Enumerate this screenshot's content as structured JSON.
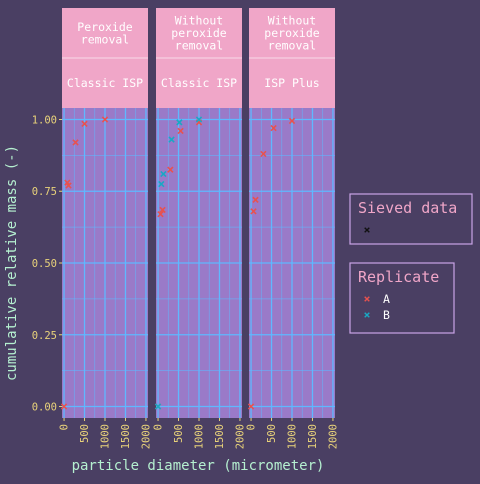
{
  "chart_data": {
    "type": "scatter",
    "xlabel": "particle diameter (micrometer)",
    "ylabel": "cumulative relative mass (-)",
    "xlim": [
      -50,
      2050
    ],
    "ylim": [
      -0.04,
      1.04
    ],
    "x_ticks": [
      0,
      500,
      1000,
      1500,
      2000
    ],
    "y_ticks": [
      0.0,
      0.25,
      0.5,
      0.75,
      1.0
    ],
    "y_tick_labels": [
      "0.00",
      "0.25",
      "0.50",
      "0.75",
      "1.00"
    ],
    "grid": true,
    "panels": [
      {
        "strip_top": "Peroxide removal",
        "strip_bottom": "Classic ISP",
        "series": [
          {
            "name": "A",
            "points": [
              [
                0,
                0.0
              ],
              [
                80,
                0.78
              ],
              [
                110,
                0.77
              ],
              [
                280,
                0.92
              ],
              [
                500,
                0.985
              ],
              [
                1000,
                1.0
              ]
            ]
          }
        ]
      },
      {
        "strip_top": "Without peroxide removal",
        "strip_bottom": "Classic ISP",
        "series": [
          {
            "name": "A",
            "points": [
              [
                0,
                0.0
              ],
              [
                60,
                0.67
              ],
              [
                110,
                0.685
              ],
              [
                300,
                0.825
              ],
              [
                550,
                0.96
              ],
              [
                1000,
                0.99
              ]
            ]
          },
          {
            "name": "B",
            "points": [
              [
                0,
                0.0
              ],
              [
                80,
                0.775
              ],
              [
                130,
                0.81
              ],
              [
                330,
                0.93
              ],
              [
                520,
                0.99
              ],
              [
                1000,
                1.0
              ]
            ]
          }
        ]
      },
      {
        "strip_top": "Without peroxide removal",
        "strip_bottom": "ISP Plus",
        "series": [
          {
            "name": "A",
            "points": [
              [
                0,
                0.0
              ],
              [
                60,
                0.68
              ],
              [
                110,
                0.72
              ],
              [
                300,
                0.88
              ],
              [
                550,
                0.97
              ],
              [
                1000,
                0.995
              ]
            ]
          }
        ]
      }
    ],
    "legends": [
      {
        "title": "Sieved data",
        "entries": [
          {
            "label": "",
            "color": "#111111"
          }
        ]
      },
      {
        "title": "Replicate",
        "entries": [
          {
            "label": "A",
            "color": "#e8524f"
          },
          {
            "label": "B",
            "color": "#19a9c4"
          }
        ]
      }
    ],
    "legend_position": "right"
  },
  "colors": {
    "background": "#4a3f63",
    "panel": "#9a7ac8",
    "strip": "#f0a6c8",
    "grid": "#5fb8ff",
    "axis_text": "#e8d27a",
    "axis_title": "#b5f0d0",
    "legend_title": "#f0a6c8",
    "legend_border": "#c9a3e6",
    "series_A": "#e8524f",
    "series_B": "#19a9c4"
  }
}
